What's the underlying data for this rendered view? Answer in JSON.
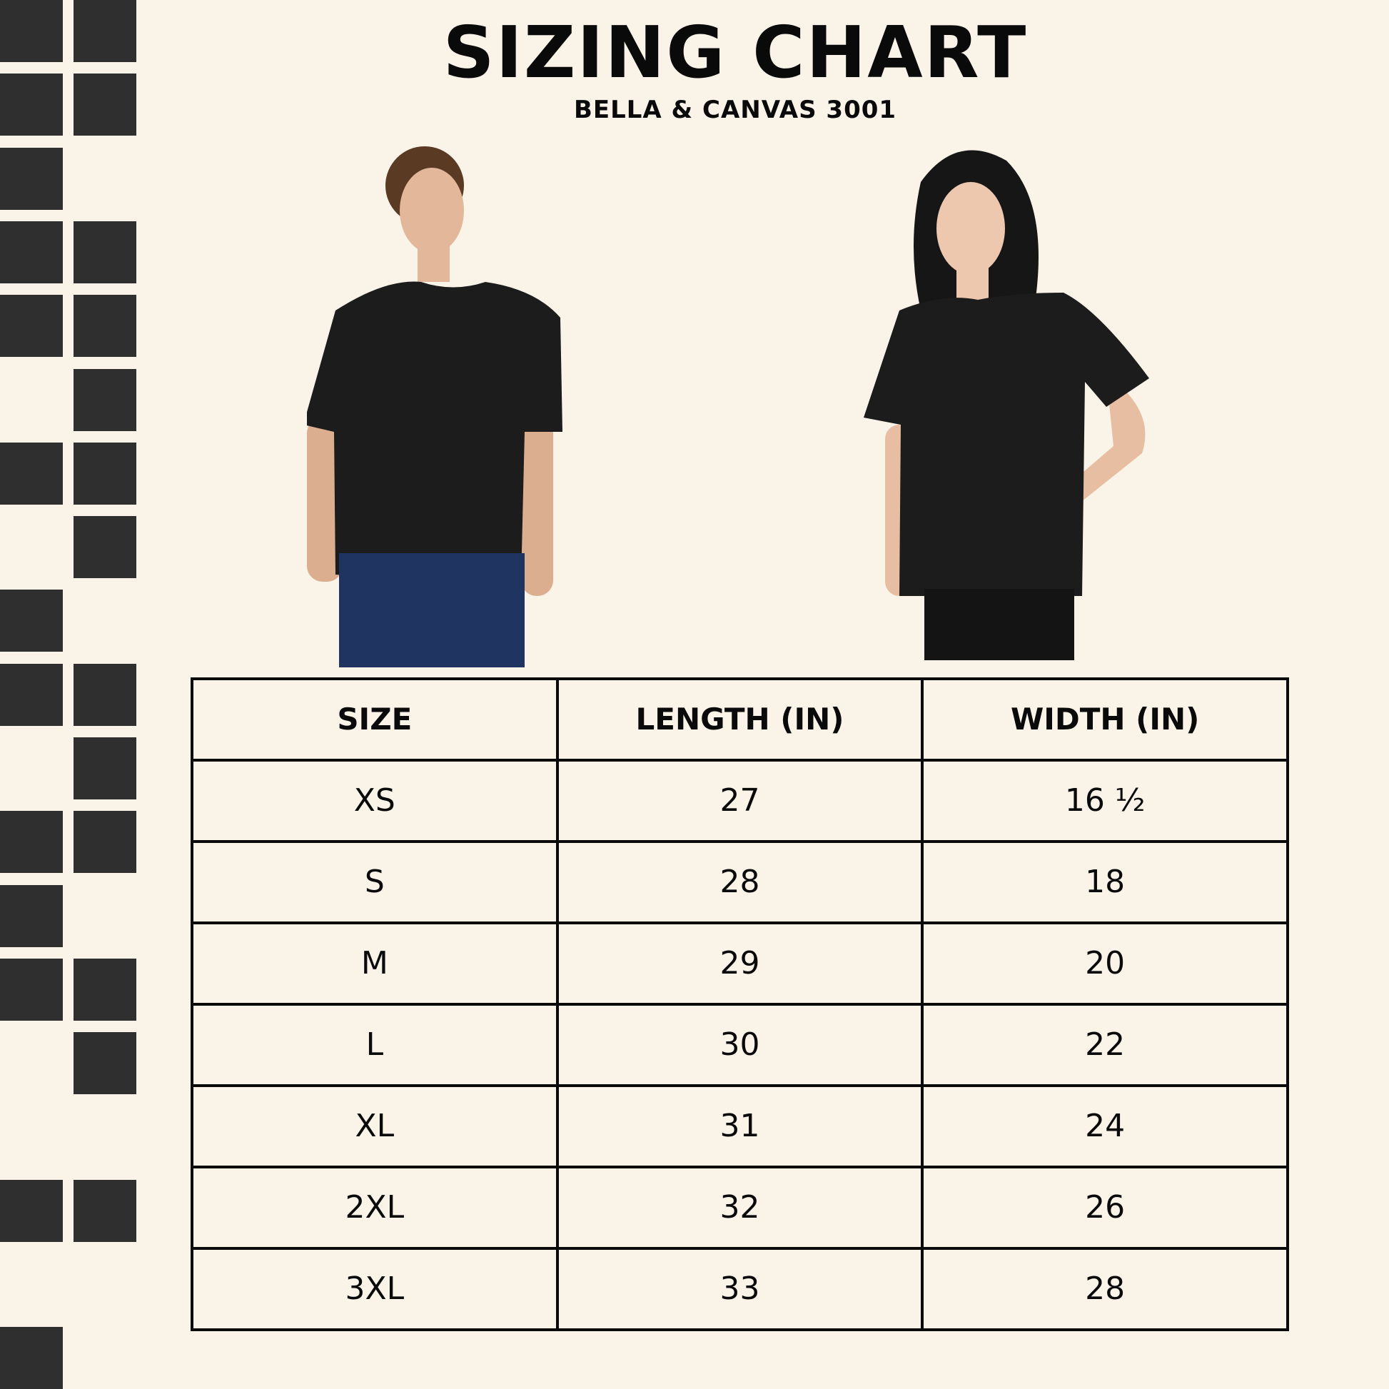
{
  "header": {
    "title": "SIZING CHART",
    "subtitle": "BELLA & CANVAS 3001"
  },
  "colors": {
    "background": "#f9f3e8",
    "squares": "#2f2f2f",
    "text": "#0a0a0a"
  },
  "images": [
    {
      "description_icon": "male-model-black-tshirt"
    },
    {
      "description_icon": "female-model-black-tshirt"
    }
  ],
  "table": {
    "headers": [
      "SIZE",
      "LENGTH (IN)",
      "WIDTH (IN)"
    ],
    "rows": [
      [
        "XS",
        "27",
        "16 ½"
      ],
      [
        "S",
        "28",
        "18"
      ],
      [
        "M",
        "29",
        "20"
      ],
      [
        "L",
        "30",
        "22"
      ],
      [
        "XL",
        "31",
        "24"
      ],
      [
        "2XL",
        "32",
        "26"
      ],
      [
        "3XL",
        "33",
        "28"
      ]
    ]
  }
}
